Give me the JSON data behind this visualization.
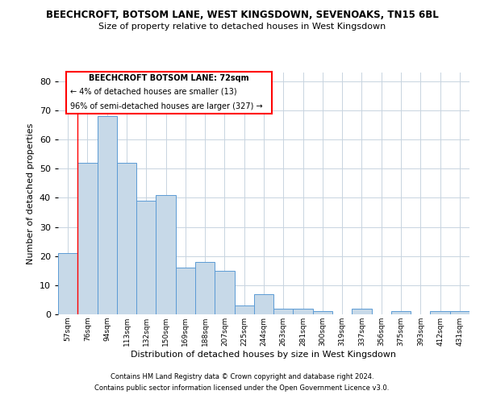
{
  "title": "BEECHCROFT, BOTSOM LANE, WEST KINGSDOWN, SEVENOAKS, TN15 6BL",
  "subtitle": "Size of property relative to detached houses in West Kingsdown",
  "xlabel": "Distribution of detached houses by size in West Kingsdown",
  "ylabel": "Number of detached properties",
  "categories": [
    "57sqm",
    "76sqm",
    "94sqm",
    "113sqm",
    "132sqm",
    "150sqm",
    "169sqm",
    "188sqm",
    "207sqm",
    "225sqm",
    "244sqm",
    "263sqm",
    "281sqm",
    "300sqm",
    "319sqm",
    "337sqm",
    "356sqm",
    "375sqm",
    "393sqm",
    "412sqm",
    "431sqm"
  ],
  "values": [
    21,
    52,
    68,
    52,
    39,
    41,
    16,
    18,
    15,
    3,
    7,
    2,
    2,
    1,
    0,
    2,
    0,
    1,
    0,
    1,
    1
  ],
  "bar_color": "#c7d9e8",
  "bar_edge_color": "#5b9bd5",
  "annotation_title": "BEECHCROFT BOTSOM LANE: 72sqm",
  "annotation_line1": "← 4% of detached houses are smaller (13)",
  "annotation_line2": "96% of semi-detached houses are larger (327) →",
  "footer_line1": "Contains HM Land Registry data © Crown copyright and database right 2024.",
  "footer_line2": "Contains public sector information licensed under the Open Government Licence v3.0.",
  "ylim": [
    0,
    83
  ],
  "bg_color": "#ffffff",
  "grid_color": "#c8d4e0"
}
